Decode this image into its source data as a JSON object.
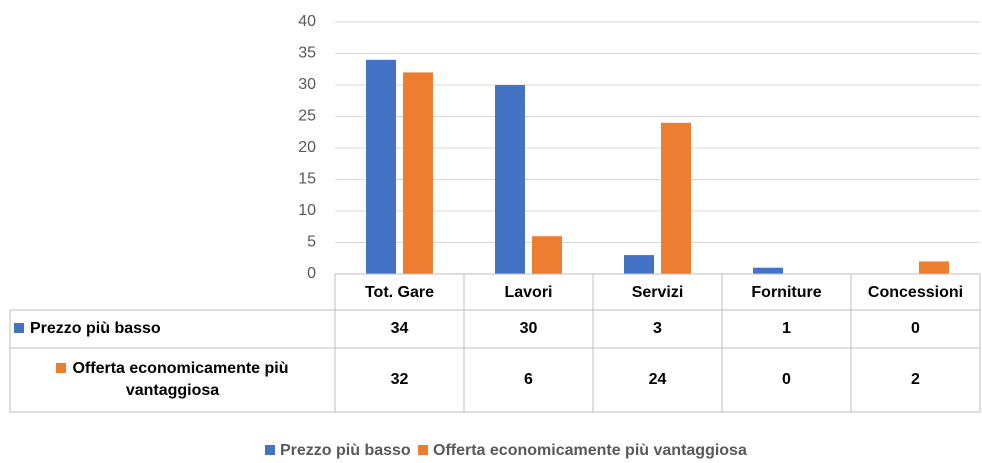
{
  "chart_data": {
    "type": "bar",
    "categories": [
      "Tot. Gare",
      "Lavori",
      "Servizi",
      "Forniture",
      "Concessioni"
    ],
    "series": [
      {
        "name": "Prezzo più basso",
        "color": "#4472c4",
        "values": [
          34,
          30,
          3,
          1,
          0
        ]
      },
      {
        "name": "Offerta economicamente più vantaggiosa",
        "color": "#ed7d31",
        "values": [
          32,
          6,
          24,
          0,
          2
        ]
      }
    ],
    "ylim": [
      0,
      40
    ],
    "yticks": [
      0,
      5,
      10,
      15,
      20,
      25,
      30,
      35,
      40
    ],
    "grid": true,
    "legend": "bottom"
  }
}
